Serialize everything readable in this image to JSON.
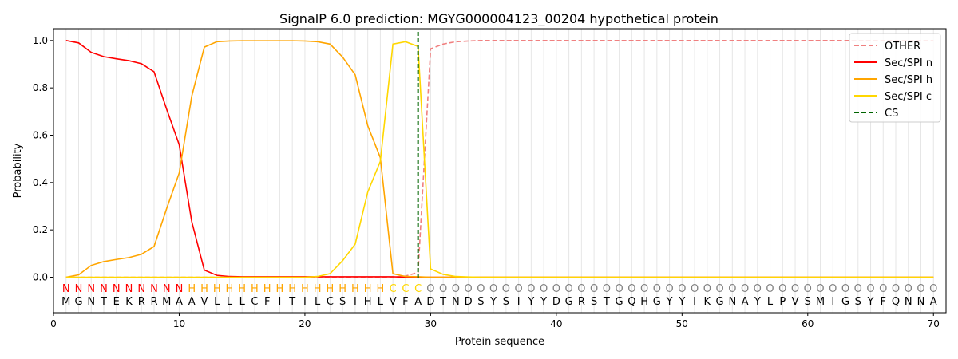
{
  "chart_data": {
    "type": "line",
    "title": "SignalP 6.0 prediction: MGYG000004123_00204 hypothetical protein",
    "xlabel": "Protein sequence",
    "ylabel": "Probability",
    "xlim": [
      0,
      71
    ],
    "ylim": [
      -0.15,
      1.05
    ],
    "xticks": [
      0,
      10,
      20,
      30,
      40,
      50,
      60,
      70
    ],
    "yticks": [
      0.0,
      0.2,
      0.4,
      0.6,
      0.8,
      1.0
    ],
    "grid": "vertical lines at each residue",
    "legend_position": "top-right",
    "sequence": [
      "M",
      "G",
      "N",
      "T",
      "E",
      "K",
      "R",
      "R",
      "M",
      "A",
      "A",
      "V",
      "L",
      "L",
      "L",
      "C",
      "F",
      "I",
      "T",
      "I",
      "L",
      "C",
      "S",
      "I",
      "H",
      "L",
      "V",
      "F",
      "A",
      "D",
      "T",
      "N",
      "D",
      "S",
      "Y",
      "S",
      "I",
      "Y",
      "Y",
      "D",
      "G",
      "R",
      "S",
      "T",
      "G",
      "Q",
      "H",
      "G",
      "Y",
      "Y",
      "I",
      "K",
      "G",
      "N",
      "A",
      "Y",
      "L",
      "P",
      "V",
      "S",
      "M",
      "I",
      "G",
      "S",
      "Y",
      "F",
      "Q",
      "N",
      "N",
      "A"
    ],
    "region_labels": [
      "N",
      "N",
      "N",
      "N",
      "N",
      "N",
      "N",
      "N",
      "N",
      "N",
      "H",
      "H",
      "H",
      "H",
      "H",
      "H",
      "H",
      "H",
      "H",
      "H",
      "H",
      "H",
      "H",
      "H",
      "H",
      "H",
      "C",
      "C",
      "C",
      "O",
      "O",
      "O",
      "O",
      "O",
      "O",
      "O",
      "O",
      "O",
      "O",
      "O",
      "O",
      "O",
      "O",
      "O",
      "O",
      "O",
      "O",
      "O",
      "O",
      "O",
      "O",
      "O",
      "O",
      "O",
      "O",
      "O",
      "O",
      "O",
      "O",
      "O",
      "O",
      "O",
      "O",
      "O",
      "O",
      "O",
      "O",
      "O",
      "O",
      "O"
    ],
    "region_colors": {
      "N": "#ff0000",
      "H": "#ffa500",
      "C": "#ffd700",
      "O": "#808080"
    },
    "series": [
      {
        "name": "OTHER",
        "color": "#f08080",
        "dash": true,
        "values": [
          0,
          0,
          0,
          0,
          0,
          0,
          0,
          0,
          0,
          0,
          0,
          0,
          0,
          0,
          0,
          0,
          0,
          0,
          0,
          0,
          0,
          0,
          0,
          0,
          0,
          0,
          0,
          0.005,
          0.02,
          0.965,
          0.985,
          0.995,
          0.998,
          1,
          1,
          1,
          1,
          1,
          1,
          1,
          1,
          1,
          1,
          1,
          1,
          1,
          1,
          1,
          1,
          1,
          1,
          1,
          1,
          1,
          1,
          1,
          1,
          1,
          1,
          1,
          1,
          1,
          1,
          1,
          1,
          1,
          1,
          1,
          1,
          1
        ]
      },
      {
        "name": "Sec/SPI n",
        "color": "#ff0000",
        "dash": false,
        "values": [
          1.0,
          0.99,
          0.95,
          0.932,
          0.923,
          0.915,
          0.902,
          0.868,
          0.71,
          0.56,
          0.235,
          0.03,
          0.008,
          0.003,
          0.002,
          0.002,
          0.002,
          0.002,
          0.002,
          0.002,
          0.002,
          0.002,
          0.002,
          0.002,
          0.002,
          0.002,
          0.002,
          0,
          0,
          0,
          0,
          0,
          0,
          0,
          0,
          0,
          0,
          0,
          0,
          0,
          0,
          0,
          0,
          0,
          0,
          0,
          0,
          0,
          0,
          0,
          0,
          0,
          0,
          0,
          0,
          0,
          0,
          0,
          0,
          0,
          0,
          0,
          0,
          0,
          0,
          0,
          0,
          0,
          0,
          0
        ]
      },
      {
        "name": "Sec/SPI h",
        "color": "#ffa500",
        "dash": false,
        "values": [
          0,
          0.01,
          0.05,
          0.066,
          0.075,
          0.083,
          0.097,
          0.13,
          0.29,
          0.44,
          0.765,
          0.972,
          0.995,
          0.998,
          0.999,
          0.999,
          0.999,
          0.999,
          0.999,
          0.998,
          0.995,
          0.985,
          0.93,
          0.855,
          0.64,
          0.505,
          0.015,
          0.003,
          0.002,
          0,
          0,
          0,
          0,
          0,
          0,
          0,
          0,
          0,
          0,
          0,
          0,
          0,
          0,
          0,
          0,
          0,
          0,
          0,
          0,
          0,
          0,
          0,
          0,
          0,
          0,
          0,
          0,
          0,
          0,
          0,
          0,
          0,
          0,
          0,
          0,
          0,
          0,
          0,
          0,
          0
        ]
      },
      {
        "name": "Sec/SPI c",
        "color": "#ffd700",
        "dash": false,
        "values": [
          0,
          0,
          0,
          0,
          0,
          0,
          0,
          0,
          0,
          0,
          0,
          0,
          0,
          0,
          0,
          0,
          0,
          0,
          0,
          0,
          0.003,
          0.015,
          0.07,
          0.14,
          0.36,
          0.49,
          0.985,
          0.995,
          0.975,
          0.035,
          0.012,
          0.003,
          0.001,
          0,
          0,
          0,
          0,
          0,
          0,
          0,
          0,
          0,
          0,
          0,
          0,
          0,
          0,
          0,
          0,
          0,
          0,
          0,
          0,
          0,
          0,
          0,
          0,
          0,
          0,
          0,
          0,
          0,
          0,
          0,
          0,
          0,
          0,
          0,
          0,
          0
        ]
      }
    ],
    "cleavage_site": {
      "name": "CS",
      "x": 29,
      "color": "#006400"
    }
  }
}
